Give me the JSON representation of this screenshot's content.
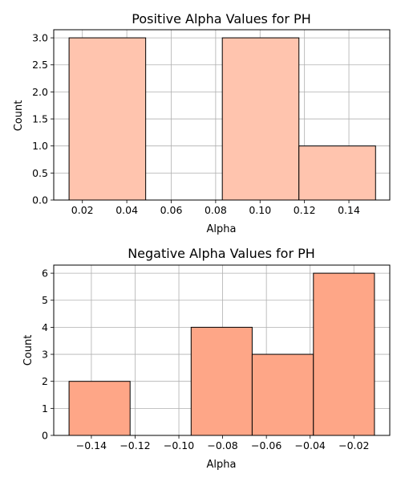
{
  "chart_data": [
    {
      "type": "bar",
      "title": "Positive Alpha Values for PH",
      "xlabel": "Alpha",
      "ylabel": "Count",
      "xlim": [
        0.0071,
        0.1584
      ],
      "ylim": [
        0,
        3.15
      ],
      "xticks": [
        0.02,
        0.04,
        0.06,
        0.08,
        0.1,
        0.12,
        0.14
      ],
      "xtick_labels": [
        "0.02",
        "0.04",
        "0.06",
        "0.08",
        "0.10",
        "0.12",
        "0.14"
      ],
      "yticks": [
        0.0,
        0.5,
        1.0,
        1.5,
        2.0,
        2.5,
        3.0
      ],
      "ytick_labels": [
        "0.0",
        "0.5",
        "1.0",
        "1.5",
        "2.0",
        "2.5",
        "3.0"
      ],
      "bins": [
        {
          "x0": 0.014,
          "x1": 0.0485,
          "value": 3
        },
        {
          "x0": 0.0485,
          "x1": 0.083,
          "value": 0
        },
        {
          "x0": 0.083,
          "x1": 0.1175,
          "value": 3
        },
        {
          "x0": 0.1175,
          "x1": 0.152,
          "value": 1
        }
      ],
      "color": "#ffc4ae",
      "grid": true
    },
    {
      "type": "bar",
      "title": "Negative Alpha Values for PH",
      "xlabel": "Alpha",
      "ylabel": "Count",
      "xlim": [
        -0.1572,
        -0.0036
      ],
      "ylim": [
        0,
        6.3
      ],
      "xticks": [
        -0.14,
        -0.12,
        -0.1,
        -0.08,
        -0.06,
        -0.04,
        -0.02
      ],
      "xtick_labels": [
        "−0.14",
        "−0.12",
        "−0.10",
        "−0.08",
        "−0.06",
        "−0.04",
        "−0.02"
      ],
      "yticks": [
        0,
        1,
        2,
        3,
        4,
        5,
        6
      ],
      "ytick_labels": [
        "0",
        "1",
        "2",
        "3",
        "4",
        "5",
        "6"
      ],
      "bins": [
        {
          "x0": -0.1502,
          "x1": -0.1223,
          "value": 2
        },
        {
          "x0": -0.1223,
          "x1": -0.0944,
          "value": 0
        },
        {
          "x0": -0.0944,
          "x1": -0.0665,
          "value": 4
        },
        {
          "x0": -0.0665,
          "x1": -0.0385,
          "value": 3
        },
        {
          "x0": -0.0385,
          "x1": -0.0106,
          "value": 6
        }
      ],
      "color": "#fea687",
      "grid": true
    }
  ]
}
